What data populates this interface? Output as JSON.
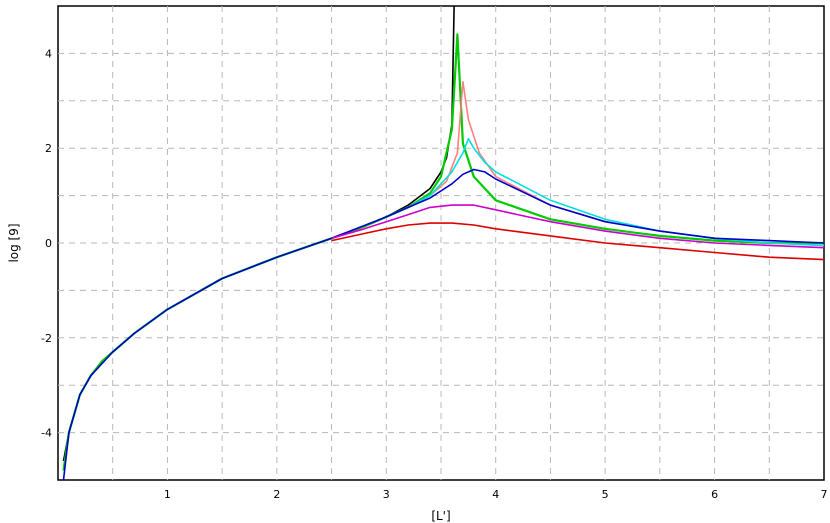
{
  "chart_data": {
    "type": "line",
    "title": "",
    "xlabel": "[L']",
    "ylabel": "log [9]",
    "xlim": [
      0,
      7
    ],
    "ylim": [
      -5,
      5
    ],
    "x_ticks": [
      1,
      2,
      3,
      4,
      5,
      6,
      7
    ],
    "y_ticks": [
      4,
      2,
      0,
      -2,
      -4
    ],
    "x_tick_labels": [
      "1",
      "2",
      "3",
      "4",
      "5",
      "6",
      "7"
    ],
    "y_tick_labels": [
      "4",
      "2",
      "0",
      "-2",
      "-4"
    ],
    "grid": true,
    "series": [
      {
        "color": "#000000",
        "x": [
          0.05,
          0.1,
          0.2,
          0.3,
          0.4,
          0.5,
          0.7,
          1.0,
          1.5,
          2.0,
          2.5,
          2.8,
          3.0,
          3.2,
          3.4,
          3.5,
          3.55,
          3.6,
          3.62
        ],
        "y": [
          -4.6,
          -4.0,
          -3.2,
          -2.8,
          -2.5,
          -2.3,
          -1.9,
          -1.4,
          -0.75,
          -0.3,
          0.1,
          0.35,
          0.55,
          0.8,
          1.15,
          1.5,
          1.8,
          2.5,
          5.0
        ]
      },
      {
        "color": "#00cc00",
        "x": [
          0.05,
          0.1,
          0.2,
          0.3,
          0.4,
          0.5,
          0.7,
          1.0,
          1.5,
          2.0,
          2.5,
          2.8,
          3.0,
          3.2,
          3.4,
          3.5,
          3.6,
          3.65,
          3.7,
          3.8,
          4.0,
          4.5,
          5.0,
          5.5,
          6.0,
          6.5,
          7.0
        ],
        "y": [
          -4.8,
          -4.0,
          -3.2,
          -2.8,
          -2.5,
          -2.3,
          -1.9,
          -1.4,
          -0.75,
          -0.3,
          0.1,
          0.35,
          0.55,
          0.75,
          1.05,
          1.4,
          2.4,
          4.4,
          2.1,
          1.4,
          0.9,
          0.5,
          0.3,
          0.15,
          0.05,
          0.0,
          0.0
        ]
      },
      {
        "color": "#ff8080",
        "x": [
          3.0,
          3.2,
          3.4,
          3.55,
          3.65,
          3.7,
          3.75,
          3.85,
          4.0,
          4.5,
          5.0,
          5.5,
          6.0,
          6.5,
          7.0
        ],
        "y": [
          0.55,
          0.75,
          1.0,
          1.3,
          1.9,
          3.4,
          2.6,
          1.9,
          1.4,
          0.8,
          0.45,
          0.25,
          0.1,
          0.0,
          -0.05
        ]
      },
      {
        "color": "#00e0e0",
        "x": [
          3.0,
          3.2,
          3.4,
          3.6,
          3.7,
          3.75,
          3.8,
          3.9,
          4.0,
          4.5,
          5.0,
          5.5,
          6.0,
          6.5,
          7.0
        ],
        "y": [
          0.55,
          0.75,
          1.0,
          1.5,
          1.9,
          2.2,
          2.0,
          1.7,
          1.5,
          0.9,
          0.5,
          0.25,
          0.1,
          0.0,
          -0.05
        ]
      },
      {
        "color": "#0000cc",
        "x": [
          0.05,
          0.1,
          0.2,
          0.3,
          0.5,
          0.7,
          1.0,
          1.5,
          2.0,
          2.5,
          3.0,
          3.2,
          3.4,
          3.6,
          3.7,
          3.8,
          3.9,
          4.0,
          4.5,
          5.0,
          5.5,
          6.0,
          6.5,
          7.0
        ],
        "y": [
          -5.0,
          -4.0,
          -3.2,
          -2.8,
          -2.3,
          -1.9,
          -1.4,
          -0.75,
          -0.3,
          0.1,
          0.55,
          0.75,
          0.95,
          1.25,
          1.45,
          1.55,
          1.5,
          1.35,
          0.8,
          0.45,
          0.25,
          0.1,
          0.05,
          0.0
        ]
      },
      {
        "color": "#cc00cc",
        "x": [
          2.5,
          2.8,
          3.0,
          3.2,
          3.4,
          3.6,
          3.8,
          4.0,
          4.2,
          4.5,
          5.0,
          5.5,
          6.0,
          6.5,
          7.0
        ],
        "y": [
          0.1,
          0.3,
          0.45,
          0.6,
          0.75,
          0.8,
          0.8,
          0.7,
          0.6,
          0.45,
          0.25,
          0.1,
          0.0,
          -0.05,
          -0.1
        ]
      },
      {
        "color": "#dd0000",
        "x": [
          2.5,
          2.8,
          3.0,
          3.2,
          3.4,
          3.6,
          3.8,
          4.0,
          4.5,
          5.0,
          5.5,
          6.0,
          6.5,
          7.0
        ],
        "y": [
          0.05,
          0.2,
          0.3,
          0.38,
          0.42,
          0.42,
          0.38,
          0.3,
          0.15,
          0.0,
          -0.1,
          -0.2,
          -0.3,
          -0.35
        ]
      }
    ]
  }
}
